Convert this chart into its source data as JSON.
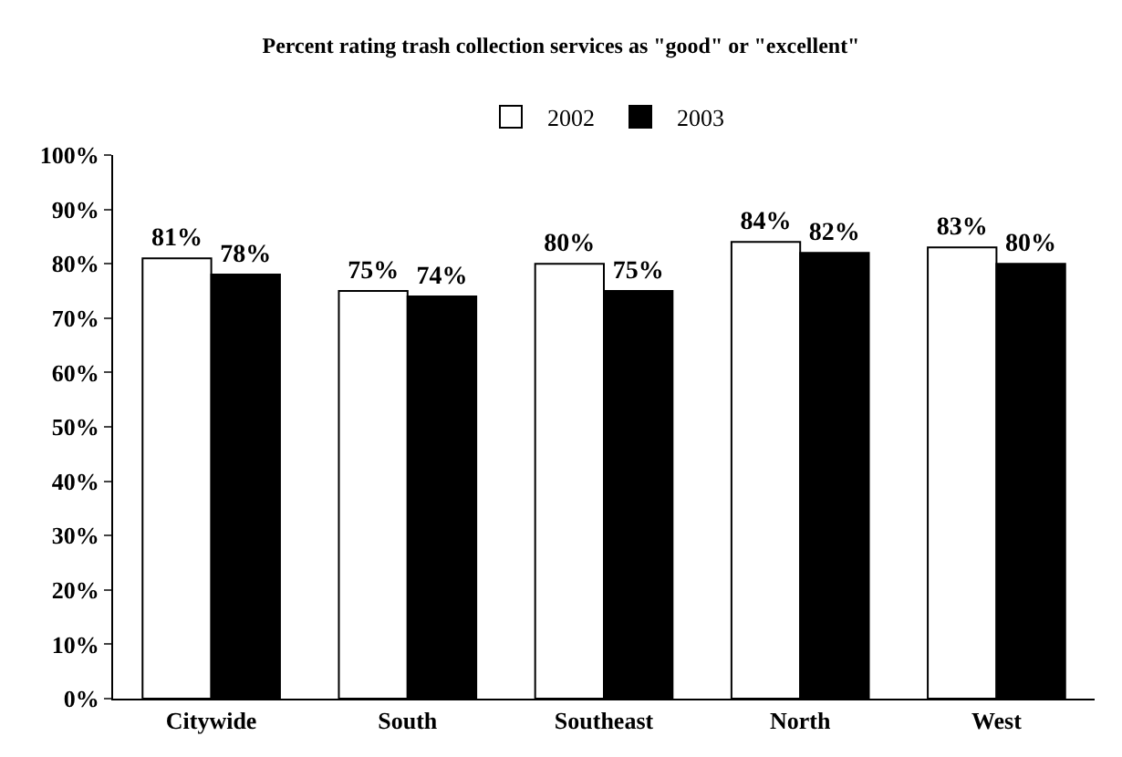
{
  "chart_data": {
    "type": "bar",
    "title": "Percent rating trash collection services as \"good\" or \"excellent\"",
    "categories": [
      "Citywide",
      "South",
      "Southeast",
      "North",
      "West"
    ],
    "series": [
      {
        "name": "2002",
        "color": "#ffffff",
        "values": [
          81,
          75,
          80,
          84,
          83
        ],
        "value_labels": [
          "81%",
          "75%",
          "80%",
          "84%",
          "83%"
        ]
      },
      {
        "name": "2003",
        "color": "#000000",
        "values": [
          78,
          74,
          75,
          82,
          80
        ],
        "value_labels": [
          "78%",
          "74%",
          "75%",
          "82%",
          "80%"
        ]
      }
    ],
    "ylim": [
      0,
      100
    ],
    "yticks": [
      {
        "value": 0,
        "label": "0%"
      },
      {
        "value": 10,
        "label": "10%"
      },
      {
        "value": 20,
        "label": "20%"
      },
      {
        "value": 30,
        "label": "30%"
      },
      {
        "value": 40,
        "label": "40%"
      },
      {
        "value": 50,
        "label": "50%"
      },
      {
        "value": 60,
        "label": "60%"
      },
      {
        "value": 70,
        "label": "70%"
      },
      {
        "value": 80,
        "label": "80%"
      },
      {
        "value": 90,
        "label": "90%"
      },
      {
        "value": 100,
        "label": "100%"
      }
    ],
    "grid": false,
    "legend": "top"
  }
}
